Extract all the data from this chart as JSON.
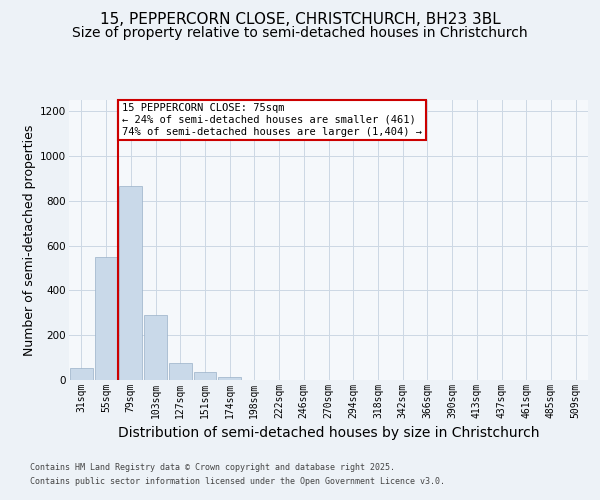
{
  "title1": "15, PEPPERCORN CLOSE, CHRISTCHURCH, BH23 3BL",
  "title2": "Size of property relative to semi-detached houses in Christchurch",
  "xlabel": "Distribution of semi-detached houses by size in Christchurch",
  "ylabel": "Number of semi-detached properties",
  "bin_labels": [
    "31sqm",
    "55sqm",
    "79sqm",
    "103sqm",
    "127sqm",
    "151sqm",
    "174sqm",
    "198sqm",
    "222sqm",
    "246sqm",
    "270sqm",
    "294sqm",
    "318sqm",
    "342sqm",
    "366sqm",
    "390sqm",
    "413sqm",
    "437sqm",
    "461sqm",
    "485sqm",
    "509sqm"
  ],
  "bar_values": [
    55,
    550,
    865,
    290,
    75,
    35,
    15,
    0,
    0,
    0,
    0,
    0,
    0,
    0,
    0,
    0,
    0,
    0,
    0,
    0,
    0
  ],
  "bar_color": "#c9d9e9",
  "bar_edge_color": "#9ab0c8",
  "red_line_color": "#cc0000",
  "annotation_text": "15 PEPPERCORN CLOSE: 75sqm\n← 24% of semi-detached houses are smaller (461)\n74% of semi-detached houses are larger (1,404) →",
  "annotation_box_color": "#ffffff",
  "annotation_border_color": "#cc0000",
  "ylim": [
    0,
    1250
  ],
  "yticks": [
    0,
    200,
    400,
    600,
    800,
    1000,
    1200
  ],
  "footer1": "Contains HM Land Registry data © Crown copyright and database right 2025.",
  "footer2": "Contains public sector information licensed under the Open Government Licence v3.0.",
  "bg_color": "#edf2f7",
  "plot_bg_color": "#f5f8fb",
  "grid_color": "#ccd8e4",
  "title1_fontsize": 11,
  "title2_fontsize": 10,
  "axis_label_fontsize": 9,
  "tick_fontsize": 7,
  "footer_fontsize": 6,
  "annot_fontsize": 7.5
}
